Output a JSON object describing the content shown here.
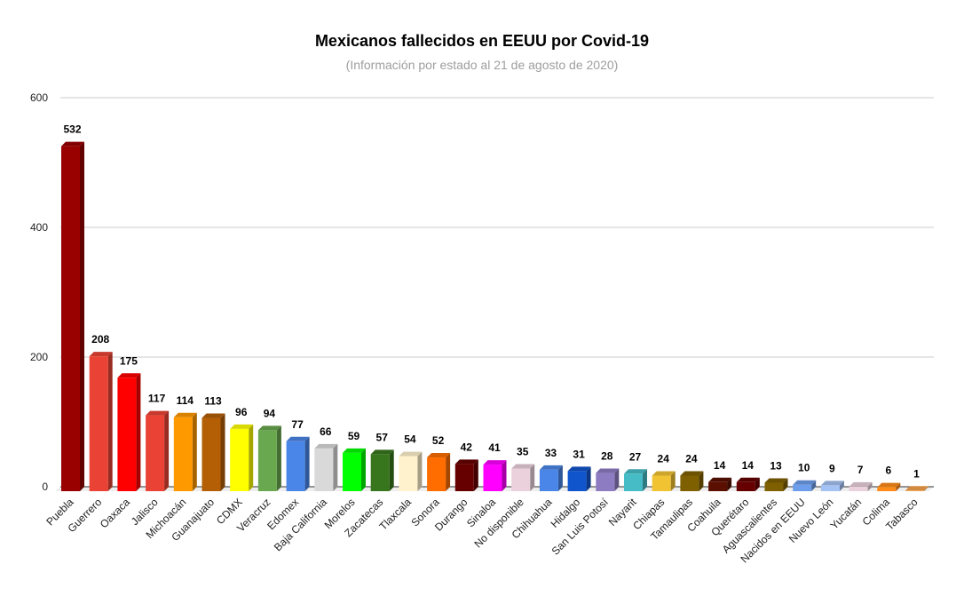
{
  "chart_data": {
    "type": "bar",
    "style": "3d",
    "title": "Mexicanos fallecidos en EEUU por Covid-19",
    "subtitle": "(Información por estado al  21 de agosto de 2020)",
    "xlabel": "",
    "ylabel": "",
    "ylim": [
      0,
      600
    ],
    "yticks": [
      0,
      200,
      400,
      600
    ],
    "grid": true,
    "legend": "none",
    "categories": [
      "Puebla",
      "Guerrero",
      "Oaxaca",
      "Jalisco",
      "Michoacán",
      "Guanajuato",
      "CDMX",
      "Veracruz",
      "Edomex",
      "Baja California",
      "Morelos",
      "Zacatecas",
      "Tlaxcala",
      "Sonora",
      "Durango",
      "Sinaloa",
      "No disponible",
      "Chihuahua",
      "Hidalgo",
      "San Luis Potosí",
      "Nayarit",
      "Chiapas",
      "Tamaulipas",
      "Coahuila",
      "Querétaro",
      "Aguascalientes",
      "Nacidos en EEUU",
      "Nuevo León",
      "Yucatán",
      "Colima",
      "Tabasco"
    ],
    "values": [
      532,
      208,
      175,
      117,
      114,
      113,
      96,
      94,
      77,
      66,
      59,
      57,
      54,
      52,
      42,
      41,
      35,
      33,
      31,
      28,
      27,
      24,
      24,
      14,
      14,
      13,
      10,
      9,
      7,
      6,
      1
    ],
    "colors": [
      "#990000",
      "#ea4335",
      "#ff0000",
      "#ea4335",
      "#ff9900",
      "#b45f06",
      "#ffff00",
      "#6aa84f",
      "#4a86e8",
      "#d9d9d9",
      "#00ff00",
      "#38761d",
      "#fff2cc",
      "#ff6d01",
      "#660000",
      "#ff00ff",
      "#ead1dc",
      "#4a86e8",
      "#1155cc",
      "#8e7cc3",
      "#46bdc6",
      "#f1c232",
      "#7f6000",
      "#5b0f00",
      "#660000",
      "#7f6000",
      "#6d9eeb",
      "#a4c2f4",
      "#ead1dc",
      "#ff8c1a",
      "#f6a24a"
    ]
  }
}
